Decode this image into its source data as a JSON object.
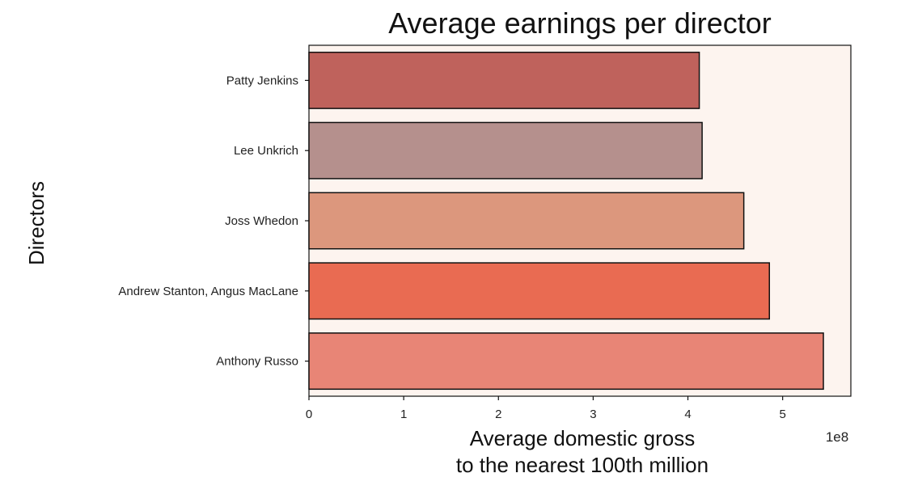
{
  "chart_data": {
    "type": "bar",
    "orientation": "horizontal",
    "title": "Average earnings per director",
    "xlabel_lines": [
      "Average domestic gross",
      "to the nearest 100th million"
    ],
    "ylabel": "Directors",
    "x_offset_text": "1e8",
    "x_scale": 100000000,
    "xlim": [
      0,
      5.72
    ],
    "x_ticks": [
      0,
      1,
      2,
      3,
      4,
      5
    ],
    "grid": false,
    "legend": "none",
    "plot_background": "#fdf4ef",
    "categories": [
      "Patty Jenkins",
      "Lee Unkrich",
      "Joss Whedon",
      "Andrew Stanton, Angus MacLane",
      "Anthony Russo"
    ],
    "values": [
      412000000,
      415000000,
      459000000,
      486000000,
      543000000
    ],
    "colors": [
      "#bf625c",
      "#b5908d",
      "#dc977d",
      "#e96b52",
      "#e88576"
    ],
    "edgecolor": "#111111"
  }
}
